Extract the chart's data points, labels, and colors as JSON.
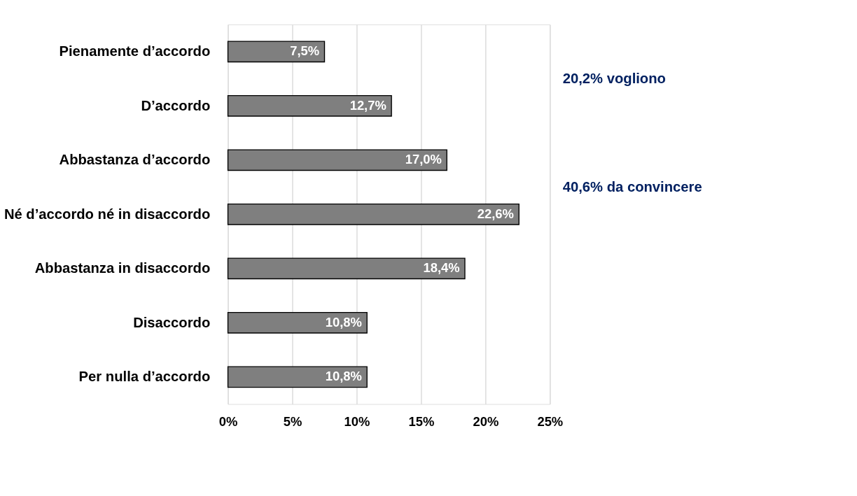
{
  "chart_data": {
    "type": "bar",
    "orientation": "horizontal",
    "categories": [
      "Pienamente d’accordo",
      "D’accordo",
      "Abbastanza d’accordo",
      "Né d’accordo né in disaccordo",
      "Abbastanza in disaccordo",
      "Disaccordo",
      "Per nulla d’accordo"
    ],
    "values": [
      7.5,
      12.7,
      17.0,
      22.6,
      18.4,
      10.8,
      10.8
    ],
    "value_labels": [
      "7,5%",
      "12,7%",
      "17,0%",
      "22,6%",
      "18,4%",
      "10,8%",
      "10,8%"
    ],
    "color": "#7f7f7f",
    "xlim": [
      0,
      25
    ],
    "xticks": [
      {
        "value": 0,
        "label": "0%"
      },
      {
        "value": 5,
        "label": "5%"
      },
      {
        "value": 10,
        "label": "10%"
      },
      {
        "value": 15,
        "label": "15%"
      },
      {
        "value": 20,
        "label": "20%"
      },
      {
        "value": 25,
        "label": "25%"
      }
    ],
    "grid": "x",
    "annotations": [
      "20,2% vogliono",
      "40,6% da convincere"
    ]
  }
}
